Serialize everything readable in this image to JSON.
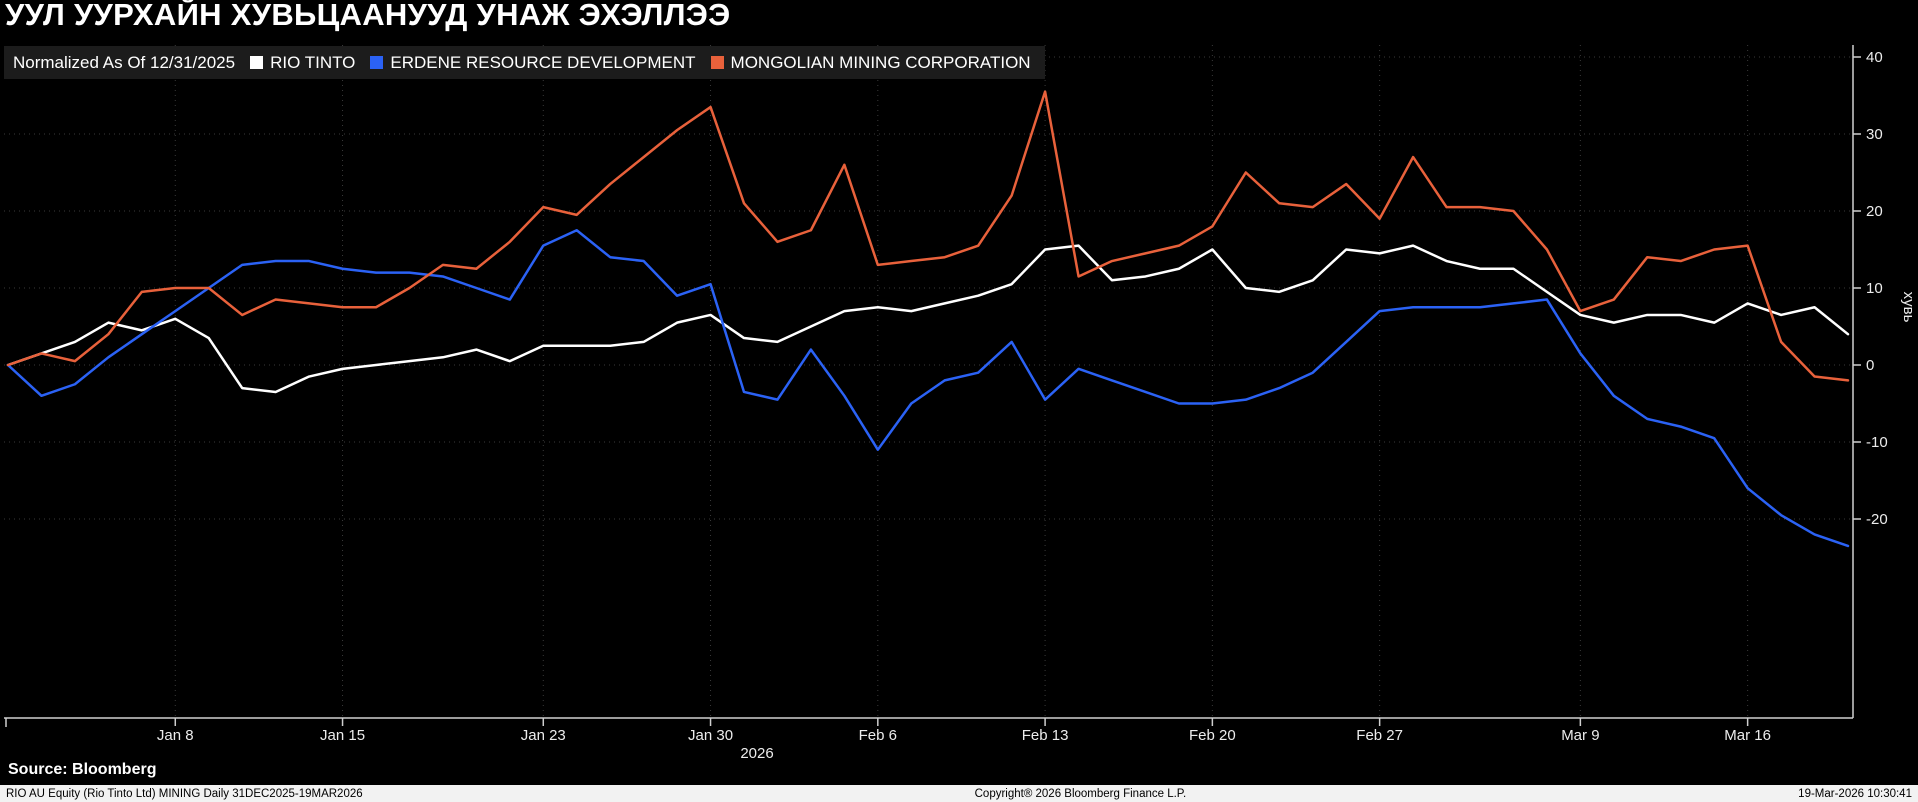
{
  "title": "УУЛ УУРХАЙН ХУВЬЦААНУУД УНАЖ ЭХЭЛЛЭЭ",
  "legend": {
    "normalized_label": "Normalized As Of 12/31/2025",
    "series": [
      {
        "label": "RIO TINTO",
        "color": "#ffffff"
      },
      {
        "label": "ERDENE RESOURCE DEVELOPMENT",
        "color": "#2b62f5"
      },
      {
        "label": "MONGOLIAN MINING CORPORATION",
        "color": "#e8613b"
      }
    ]
  },
  "chart_data": {
    "type": "line",
    "title": "УУЛ УУРХАЙН ХУВЬЦААНУУД УНАЖ ЭХЭЛЛЭЭ",
    "xlabel": "",
    "ylabel": "хувь",
    "year_label": "2026",
    "yticks": [
      40,
      30,
      20,
      10,
      0,
      -10,
      -20
    ],
    "ylim": [
      -46,
      41.5
    ],
    "grid": "dotted",
    "legend_position": "top-left",
    "x_ticks": [
      {
        "index": 5,
        "label": "Jan 8"
      },
      {
        "index": 10,
        "label": "Jan 15"
      },
      {
        "index": 16,
        "label": "Jan 23"
      },
      {
        "index": 21,
        "label": "Jan 30"
      },
      {
        "index": 26,
        "label": "Feb 6"
      },
      {
        "index": 31,
        "label": "Feb 13"
      },
      {
        "index": 36,
        "label": "Feb 20"
      },
      {
        "index": 41,
        "label": "Feb 27"
      },
      {
        "index": 47,
        "label": "Mar 9"
      },
      {
        "index": 52,
        "label": "Mar 16"
      }
    ],
    "series": [
      {
        "name": "RIO TINTO",
        "color": "#ffffff",
        "values": [
          0,
          1.5,
          3,
          5.5,
          4.5,
          6,
          3.5,
          -3,
          -3.5,
          -1.5,
          -0.5,
          0,
          0.5,
          1,
          2,
          0.5,
          2.5,
          2.5,
          2.5,
          3,
          5.5,
          6.5,
          3.5,
          3,
          5,
          7,
          7.5,
          7,
          8,
          9,
          10.5,
          15,
          15.5,
          11,
          11.5,
          12.5,
          15,
          10,
          9.5,
          11,
          15,
          14.5,
          15.5,
          13.5,
          12.5,
          12.5,
          9.5,
          6.5,
          5.5,
          6.5,
          6.5,
          5.5,
          8,
          6.5,
          7.5,
          4
        ]
      },
      {
        "name": "ERDENE RESOURCE DEVELOPMENT",
        "color": "#2b62f5",
        "values": [
          0,
          -4,
          -2.5,
          1,
          4,
          7,
          10,
          13,
          13.5,
          13.5,
          12.5,
          12,
          12,
          11.5,
          10,
          8.5,
          15.5,
          17.5,
          14,
          13.5,
          9,
          10.5,
          -3.5,
          -4.5,
          2,
          -4,
          -11,
          -5,
          -2,
          -1,
          3,
          -4.5,
          -0.5,
          -2,
          -3.5,
          -5,
          -5,
          -4.5,
          -3,
          -1,
          3,
          7,
          7.5,
          7.5,
          7.5,
          8,
          8.5,
          1.5,
          -4,
          -7,
          -8,
          -9.5,
          -16,
          -19.5,
          -22,
          -23.5
        ]
      },
      {
        "name": "MONGOLIAN MINING CORPORATION",
        "color": "#e8613b",
        "values": [
          0,
          1.5,
          0.5,
          4,
          9.5,
          10,
          10,
          6.5,
          8.5,
          8,
          7.5,
          7.5,
          10,
          13,
          12.5,
          16,
          20.5,
          19.5,
          23.5,
          27,
          30.5,
          33.5,
          21,
          16,
          17.5,
          26,
          13,
          13.5,
          14,
          15.5,
          22,
          35.5,
          11.5,
          13.5,
          14.5,
          15.5,
          18,
          25,
          21,
          20.5,
          23.5,
          19,
          27,
          20.5,
          20.5,
          20,
          15,
          7,
          8.5,
          14,
          13.5,
          15,
          15.5,
          3,
          -1.5,
          -2
        ]
      }
    ]
  },
  "source": "Source: Bloomberg",
  "footer": {
    "left": "RIO AU Equity (Rio Tinto Ltd) MINING Daily 31DEC2025-19MAR2026",
    "center": "Copyright® 2026 Bloomberg Finance L.P.",
    "right": "19-Mar-2026 10:30:41"
  }
}
